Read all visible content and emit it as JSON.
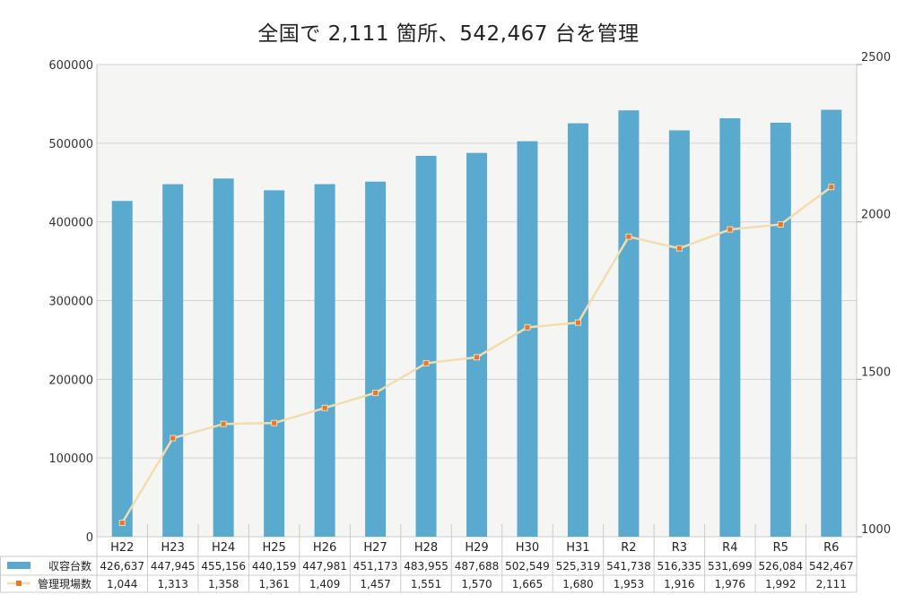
{
  "title": "全国で 2,111 箇所、542,467 台を管理",
  "colors": {
    "bar": "#5aaad0",
    "line": "#f3dcae",
    "marker": "#e07a2e",
    "plot_bg": "#f5f6f4",
    "grid": "#cfd2cf"
  },
  "chart_data": {
    "type": "bar",
    "title": "全国で 2,111 箇所、542,467 台を管理",
    "categories": [
      "H22",
      "H23",
      "H24",
      "H25",
      "H26",
      "H27",
      "H28",
      "H29",
      "H30",
      "H31",
      "R2",
      "R3",
      "R4",
      "R5",
      "R6"
    ],
    "series": [
      {
        "name": "収容台数",
        "type": "bar",
        "axis": "left",
        "values": [
          426637,
          447945,
          455156,
          440159,
          447981,
          451173,
          483955,
          487688,
          502549,
          525319,
          541738,
          516335,
          531699,
          526084,
          542467
        ],
        "labels": [
          "426,637",
          "447,945",
          "455,156",
          "440,159",
          "447,981",
          "451,173",
          "483,955",
          "487,688",
          "502,549",
          "525,319",
          "541,738",
          "516,335",
          "531,699",
          "526,084",
          "542,467"
        ]
      },
      {
        "name": "管理現場数",
        "type": "line",
        "axis": "right",
        "values": [
          1044,
          1313,
          1358,
          1361,
          1409,
          1457,
          1551,
          1570,
          1665,
          1680,
          1953,
          1916,
          1976,
          1992,
          2111
        ],
        "labels": [
          "1,044",
          "1,313",
          "1,358",
          "1,361",
          "1,409",
          "1,457",
          "1,551",
          "1,570",
          "1,665",
          "1,680",
          "1,953",
          "1,916",
          "1,976",
          "1,992",
          "2,111"
        ]
      }
    ],
    "y_left": {
      "ticks": [
        "0",
        "100000",
        "200000",
        "300000",
        "400000",
        "500000",
        "600000"
      ],
      "ylim": [
        0,
        600000
      ]
    },
    "y_right": {
      "ticks": [
        "1000",
        "1500",
        "2000",
        "2500"
      ],
      "ylim": [
        1000,
        2500
      ]
    },
    "grid": true,
    "legend": "data-table"
  }
}
